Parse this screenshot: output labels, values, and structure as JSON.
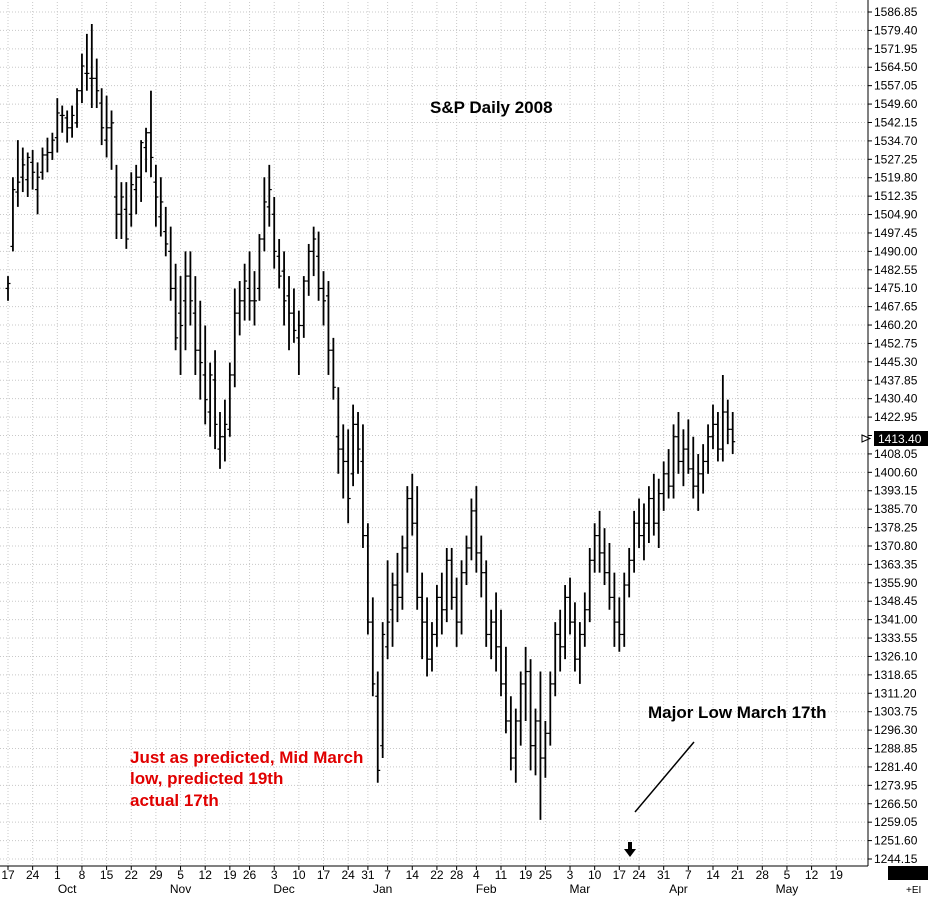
{
  "chart_data": {
    "type": "bar",
    "subtype": "ohlc",
    "title": "S&P Daily 2008",
    "xlabel": "",
    "ylabel": "",
    "ylim": [
      1240,
      1590
    ],
    "y_ticks": [
      1586.85,
      1579.4,
      1571.95,
      1564.5,
      1557.05,
      1549.6,
      1542.15,
      1534.7,
      1527.25,
      1519.8,
      1512.35,
      1504.9,
      1497.45,
      1490.0,
      1482.55,
      1475.1,
      1467.65,
      1460.2,
      1452.75,
      1445.3,
      1437.85,
      1430.4,
      1422.95,
      1415.5,
      1408.05,
      1400.6,
      1393.15,
      1385.7,
      1378.25,
      1370.8,
      1363.35,
      1355.9,
      1348.45,
      1341.0,
      1333.55,
      1326.1,
      1318.65,
      1311.2,
      1303.75,
      1296.3,
      1288.85,
      1281.4,
      1273.95,
      1266.5,
      1259.05,
      1251.6,
      1244.15
    ],
    "y_tick_labels": [
      "1586.85",
      "1579.40",
      "1571.95",
      "1564.50",
      "1557.05",
      "1549.60",
      "1542.15",
      "1534.70",
      "1527.25",
      "1519.80",
      "1512.35",
      "1504.90",
      "1497.45",
      "1490.00",
      "1482.55",
      "1475.10",
      "1467.65",
      "1460.20",
      "1452.75",
      "1445.30",
      "1437.85",
      "1430.40",
      "1422.95",
      "1415.50",
      "1408.05",
      "1400.60",
      "1393.15",
      "1385.70",
      "1378.25",
      "1370.80",
      "1363.35",
      "1355.90",
      "1348.45",
      "1341.00",
      "1333.55",
      "1326.10",
      "1318.65",
      "1311.20",
      "1303.75",
      "1296.30",
      "1288.85",
      "1281.40",
      "1273.95",
      "1266.50",
      "1259.05",
      "1251.60",
      "1244.15"
    ],
    "last_price_label": "1413.40",
    "x_ticks": [
      {
        "label": "17",
        "bar": 0
      },
      {
        "label": "24",
        "bar": 5
      },
      {
        "label": "1",
        "bar": 10
      },
      {
        "label": "8",
        "bar": 15
      },
      {
        "label": "15",
        "bar": 20
      },
      {
        "label": "22",
        "bar": 25
      },
      {
        "label": "29",
        "bar": 30
      },
      {
        "label": "5",
        "bar": 35
      },
      {
        "label": "12",
        "bar": 40
      },
      {
        "label": "19",
        "bar": 45
      },
      {
        "label": "26",
        "bar": 49
      },
      {
        "label": "3",
        "bar": 54
      },
      {
        "label": "10",
        "bar": 59
      },
      {
        "label": "17",
        "bar": 64
      },
      {
        "label": "24",
        "bar": 69
      },
      {
        "label": "31",
        "bar": 73
      },
      {
        "label": "7",
        "bar": 77
      },
      {
        "label": "14",
        "bar": 82
      },
      {
        "label": "22",
        "bar": 87
      },
      {
        "label": "28",
        "bar": 91
      },
      {
        "label": "4",
        "bar": 95
      },
      {
        "label": "11",
        "bar": 100
      },
      {
        "label": "19",
        "bar": 105
      },
      {
        "label": "25",
        "bar": 109
      },
      {
        "label": "3",
        "bar": 114
      },
      {
        "label": "10",
        "bar": 119
      },
      {
        "label": "17",
        "bar": 124
      },
      {
        "label": "24",
        "bar": 128
      },
      {
        "label": "31",
        "bar": 133
      },
      {
        "label": "7",
        "bar": 138
      },
      {
        "label": "14",
        "bar": 143
      },
      {
        "label": "21",
        "bar": 148
      },
      {
        "label": "28",
        "bar": 153
      },
      {
        "label": "5",
        "bar": 158
      },
      {
        "label": "12",
        "bar": 163
      },
      {
        "label": "19",
        "bar": 168
      }
    ],
    "months": [
      {
        "label": "Oct",
        "bar": 12
      },
      {
        "label": "Nov",
        "bar": 35
      },
      {
        "label": "Dec",
        "bar": 56
      },
      {
        "label": "Jan",
        "bar": 76
      },
      {
        "label": "Feb",
        "bar": 97
      },
      {
        "label": "Mar",
        "bar": 116
      },
      {
        "label": "Apr",
        "bar": 136
      },
      {
        "label": "May",
        "bar": 158
      }
    ],
    "series": [
      {
        "values": [
          [
            1475,
            1480,
            1470,
            1477
          ],
          [
            1492,
            1520,
            1490,
            1515
          ],
          [
            1514,
            1535,
            1508,
            1518
          ],
          [
            1520,
            1532,
            1514,
            1525
          ],
          [
            1519,
            1530,
            1512,
            1528
          ],
          [
            1526,
            1531,
            1515,
            1522
          ],
          [
            1515,
            1526,
            1505,
            1520
          ],
          [
            1522,
            1532,
            1519,
            1529
          ],
          [
            1529,
            1536,
            1522,
            1530
          ],
          [
            1530,
            1538,
            1527,
            1535
          ],
          [
            1536,
            1552,
            1530,
            1546
          ],
          [
            1545,
            1549,
            1538,
            1545
          ],
          [
            1544,
            1547,
            1534,
            1540
          ],
          [
            1540,
            1549,
            1536,
            1545
          ],
          [
            1542,
            1556,
            1540,
            1555
          ],
          [
            1555,
            1570,
            1550,
            1565
          ],
          [
            1562,
            1578,
            1555,
            1562
          ],
          [
            1560,
            1582,
            1548,
            1560
          ],
          [
            1560,
            1568,
            1548,
            1555
          ],
          [
            1550,
            1556,
            1533,
            1540
          ],
          [
            1535,
            1553,
            1528,
            1540
          ],
          [
            1540,
            1547,
            1523,
            1542
          ],
          [
            1512,
            1525,
            1495,
            1505
          ],
          [
            1505,
            1518,
            1495,
            1512
          ],
          [
            1507,
            1518,
            1491,
            1495
          ],
          [
            1505,
            1522,
            1500,
            1517
          ],
          [
            1515,
            1525,
            1505,
            1520
          ],
          [
            1520,
            1535,
            1510,
            1534
          ],
          [
            1532,
            1540,
            1522,
            1538
          ],
          [
            1538,
            1555,
            1520,
            1528
          ],
          [
            1518,
            1525,
            1500,
            1512
          ],
          [
            1504,
            1520,
            1496,
            1510
          ],
          [
            1498,
            1508,
            1488,
            1493
          ],
          [
            1490,
            1500,
            1470,
            1475
          ],
          [
            1475,
            1485,
            1450,
            1455
          ],
          [
            1465,
            1480,
            1440,
            1460
          ],
          [
            1470,
            1490,
            1450,
            1480
          ],
          [
            1480,
            1490,
            1460,
            1470
          ],
          [
            1465,
            1480,
            1440,
            1450
          ],
          [
            1450,
            1470,
            1430,
            1445
          ],
          [
            1440,
            1460,
            1420,
            1430
          ],
          [
            1425,
            1445,
            1415,
            1440
          ],
          [
            1438,
            1450,
            1410,
            1420
          ],
          [
            1410,
            1425,
            1402,
            1415
          ],
          [
            1415,
            1430,
            1405,
            1420
          ],
          [
            1418,
            1445,
            1415,
            1440
          ],
          [
            1440,
            1475,
            1435,
            1465
          ],
          [
            1465,
            1478,
            1456,
            1470
          ],
          [
            1470,
            1485,
            1462,
            1478
          ],
          [
            1475,
            1490,
            1462,
            1470
          ],
          [
            1470,
            1482,
            1460,
            1470
          ],
          [
            1475,
            1497,
            1470,
            1495
          ],
          [
            1495,
            1520,
            1490,
            1510
          ],
          [
            1508,
            1525,
            1500,
            1515
          ],
          [
            1505,
            1512,
            1483,
            1490
          ],
          [
            1488,
            1495,
            1475,
            1480
          ],
          [
            1482,
            1490,
            1460,
            1470
          ],
          [
            1472,
            1480,
            1450,
            1465
          ],
          [
            1465,
            1475,
            1453,
            1458
          ],
          [
            1455,
            1466,
            1440,
            1460
          ],
          [
            1460,
            1480,
            1455,
            1478
          ],
          [
            1478,
            1493,
            1472,
            1490
          ],
          [
            1490,
            1500,
            1480,
            1495
          ],
          [
            1488,
            1498,
            1470,
            1475
          ],
          [
            1475,
            1482,
            1460,
            1470
          ],
          [
            1472,
            1478,
            1440,
            1450
          ],
          [
            1450,
            1455,
            1430,
            1435
          ],
          [
            1415,
            1435,
            1400,
            1410
          ],
          [
            1410,
            1420,
            1390,
            1405
          ],
          [
            1405,
            1418,
            1380,
            1390
          ],
          [
            1400,
            1428,
            1395,
            1420
          ],
          [
            1420,
            1425,
            1400,
            1410
          ],
          [
            1405,
            1420,
            1370,
            1375
          ],
          [
            1375,
            1380,
            1335,
            1340
          ],
          [
            1340,
            1350,
            1310,
            1315
          ],
          [
            1310,
            1320,
            1275,
            1280
          ],
          [
            1290,
            1340,
            1285,
            1335
          ],
          [
            1330,
            1365,
            1325,
            1340
          ],
          [
            1345,
            1360,
            1330,
            1355
          ],
          [
            1355,
            1368,
            1340,
            1350
          ],
          [
            1350,
            1375,
            1345,
            1370
          ],
          [
            1370,
            1395,
            1360,
            1390
          ],
          [
            1390,
            1400,
            1375,
            1380
          ],
          [
            1380,
            1395,
            1345,
            1350
          ],
          [
            1350,
            1360,
            1325,
            1340
          ],
          [
            1340,
            1350,
            1318,
            1325
          ],
          [
            1325,
            1340,
            1320,
            1335
          ],
          [
            1335,
            1355,
            1330,
            1350
          ],
          [
            1350,
            1360,
            1335,
            1345
          ],
          [
            1345,
            1370,
            1340,
            1365
          ],
          [
            1365,
            1370,
            1345,
            1350
          ],
          [
            1350,
            1358,
            1330,
            1340
          ],
          [
            1340,
            1365,
            1335,
            1360
          ],
          [
            1360,
            1375,
            1355,
            1370
          ],
          [
            1370,
            1390,
            1365,
            1385
          ],
          [
            1385,
            1395,
            1360,
            1368
          ],
          [
            1368,
            1375,
            1350,
            1360
          ],
          [
            1360,
            1365,
            1330,
            1335
          ],
          [
            1335,
            1345,
            1325,
            1340
          ],
          [
            1340,
            1352,
            1320,
            1330
          ],
          [
            1330,
            1345,
            1310,
            1315
          ],
          [
            1315,
            1330,
            1295,
            1300
          ],
          [
            1300,
            1310,
            1280,
            1285
          ],
          [
            1285,
            1305,
            1275,
            1300
          ],
          [
            1300,
            1320,
            1290,
            1315
          ],
          [
            1315,
            1330,
            1300,
            1320
          ],
          [
            1320,
            1325,
            1280,
            1290
          ],
          [
            1290,
            1305,
            1278,
            1300
          ],
          [
            1300,
            1320,
            1260,
            1285
          ],
          [
            1285,
            1300,
            1277,
            1295
          ],
          [
            1295,
            1320,
            1290,
            1315
          ],
          [
            1315,
            1340,
            1310,
            1335
          ],
          [
            1335,
            1345,
            1320,
            1330
          ],
          [
            1330,
            1355,
            1325,
            1350
          ],
          [
            1350,
            1358,
            1335,
            1340
          ],
          [
            1340,
            1348,
            1320,
            1325
          ],
          [
            1325,
            1340,
            1315,
            1335
          ],
          [
            1335,
            1352,
            1330,
            1345
          ],
          [
            1345,
            1370,
            1340,
            1365
          ],
          [
            1365,
            1380,
            1360,
            1375
          ],
          [
            1375,
            1385,
            1360,
            1368
          ],
          [
            1368,
            1378,
            1355,
            1360
          ],
          [
            1360,
            1372,
            1345,
            1350
          ],
          [
            1350,
            1360,
            1330,
            1340
          ],
          [
            1340,
            1350,
            1328,
            1335
          ],
          [
            1335,
            1360,
            1330,
            1355
          ],
          [
            1355,
            1370,
            1350,
            1365
          ],
          [
            1365,
            1385,
            1360,
            1380
          ],
          [
            1380,
            1390,
            1370,
            1375
          ],
          [
            1375,
            1388,
            1365,
            1380
          ],
          [
            1380,
            1395,
            1372,
            1390
          ],
          [
            1390,
            1400,
            1375,
            1380
          ],
          [
            1380,
            1398,
            1370,
            1392
          ],
          [
            1392,
            1405,
            1385,
            1400
          ],
          [
            1400,
            1410,
            1390,
            1395
          ],
          [
            1395,
            1420,
            1390,
            1415
          ],
          [
            1415,
            1425,
            1400,
            1405
          ],
          [
            1405,
            1418,
            1395,
            1410
          ],
          [
            1410,
            1422,
            1400,
            1402
          ],
          [
            1402,
            1415,
            1390,
            1395
          ],
          [
            1395,
            1408,
            1385,
            1400
          ],
          [
            1400,
            1412,
            1392,
            1405
          ],
          [
            1405,
            1420,
            1400,
            1415
          ],
          [
            1415,
            1428,
            1410,
            1420
          ],
          [
            1420,
            1425,
            1405,
            1410
          ],
          [
            1410,
            1440,
            1405,
            1425
          ],
          [
            1425,
            1430,
            1412,
            1418
          ],
          [
            1418,
            1425,
            1408,
            1413
          ]
        ]
      }
    ],
    "annotations": [
      {
        "text": "Major Low March 17th",
        "color": "#000000"
      },
      {
        "text_lines": [
          "Just as predicted, Mid March",
          "low, predicted 19th",
          "actual 17th"
        ],
        "color": "#e00000"
      }
    ],
    "grid": true,
    "colors": {
      "bars": "#000000",
      "grid": "#c8c8c8",
      "annotation_red": "#e00000",
      "last_price_bg": "#000000"
    },
    "footer_label": "+EI"
  }
}
